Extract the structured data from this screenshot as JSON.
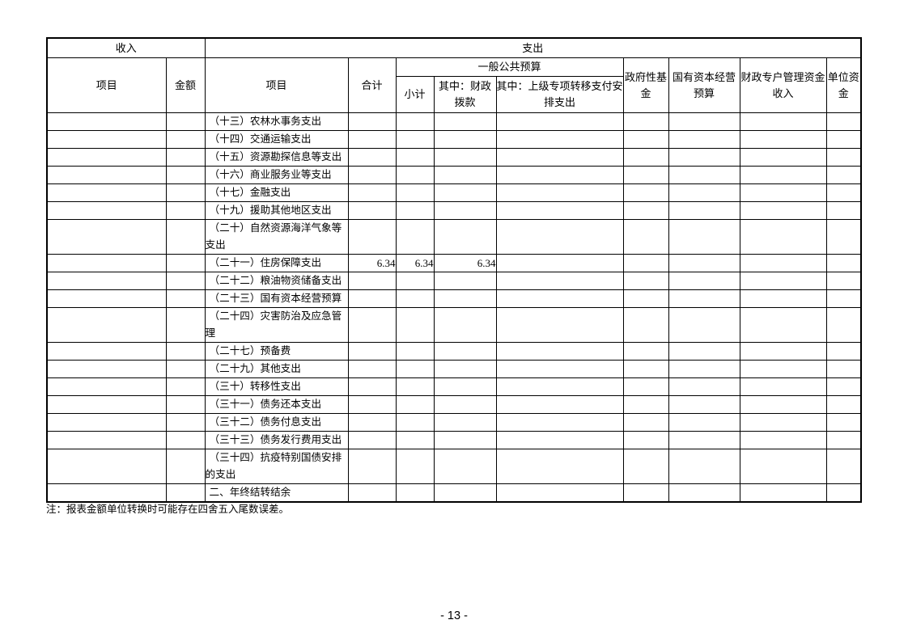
{
  "page": {
    "note": "注：报表金额单位转换时可能存在四舍五入尾数误差。",
    "number_label": "- 13 -"
  },
  "table": {
    "header": {
      "income": "收入",
      "expense": "支出",
      "income_item": "项目",
      "income_amount": "金额",
      "expense_item": "项目",
      "total": "合计",
      "general_public_budget": "一般公共预算",
      "subtotal": "小计",
      "fiscal_allocation": "其中：财政拨款",
      "transfer_payment": "其中：上级专项转移支付安排支出",
      "gov_fund": "政府性基金",
      "state_capital": "国有资本经营预算",
      "special_account": "财政专户管理资金收入",
      "unit_fund": "单位资金"
    },
    "rows": [
      {
        "income_item": "",
        "income_amount": "",
        "item": "（十三）农林水事务支出",
        "values": [
          "",
          "",
          "",
          "",
          "",
          "",
          "",
          ""
        ]
      },
      {
        "income_item": "",
        "income_amount": "",
        "item": "（十四）交通运输支出",
        "values": [
          "",
          "",
          "",
          "",
          "",
          "",
          "",
          ""
        ]
      },
      {
        "income_item": "",
        "income_amount": "",
        "item": "（十五）资源勘探信息等支出",
        "values": [
          "",
          "",
          "",
          "",
          "",
          "",
          "",
          ""
        ]
      },
      {
        "income_item": "",
        "income_amount": "",
        "item": "（十六）商业服务业等支出",
        "values": [
          "",
          "",
          "",
          "",
          "",
          "",
          "",
          ""
        ]
      },
      {
        "income_item": "",
        "income_amount": "",
        "item": "（十七）金融支出",
        "values": [
          "",
          "",
          "",
          "",
          "",
          "",
          "",
          ""
        ]
      },
      {
        "income_item": "",
        "income_amount": "",
        "item": "（十九）援助其他地区支出",
        "values": [
          "",
          "",
          "",
          "",
          "",
          "",
          "",
          ""
        ]
      },
      {
        "income_item": "",
        "income_amount": "",
        "item": "（二十）自然资源海洋气象等支出",
        "values": [
          "",
          "",
          "",
          "",
          "",
          "",
          "",
          ""
        ]
      },
      {
        "income_item": "",
        "income_amount": "",
        "item": "（二十一）住房保障支出",
        "values": [
          "6.34",
          "6.34",
          "6.34",
          "",
          "",
          "",
          "",
          ""
        ]
      },
      {
        "income_item": "",
        "income_amount": "",
        "item": "（二十二）粮油物资储备支出",
        "values": [
          "",
          "",
          "",
          "",
          "",
          "",
          "",
          ""
        ]
      },
      {
        "income_item": "",
        "income_amount": "",
        "item": "（二十三）国有资本经营预算",
        "values": [
          "",
          "",
          "",
          "",
          "",
          "",
          "",
          ""
        ]
      },
      {
        "income_item": "",
        "income_amount": "",
        "item": "（二十四）灾害防治及应急管理",
        "values": [
          "",
          "",
          "",
          "",
          "",
          "",
          "",
          ""
        ]
      },
      {
        "income_item": "",
        "income_amount": "",
        "item": "（二十七）预备费",
        "values": [
          "",
          "",
          "",
          "",
          "",
          "",
          "",
          ""
        ]
      },
      {
        "income_item": "",
        "income_amount": "",
        "item": "（二十九）其他支出",
        "values": [
          "",
          "",
          "",
          "",
          "",
          "",
          "",
          ""
        ]
      },
      {
        "income_item": "",
        "income_amount": "",
        "item": "（三十）转移性支出",
        "values": [
          "",
          "",
          "",
          "",
          "",
          "",
          "",
          ""
        ]
      },
      {
        "income_item": "",
        "income_amount": "",
        "item": "（三十一）债务还本支出",
        "values": [
          "",
          "",
          "",
          "",
          "",
          "",
          "",
          ""
        ]
      },
      {
        "income_item": "",
        "income_amount": "",
        "item": "（三十二）债务付息支出",
        "values": [
          "",
          "",
          "",
          "",
          "",
          "",
          "",
          ""
        ]
      },
      {
        "income_item": "",
        "income_amount": "",
        "item": "（三十三）债务发行费用支出",
        "values": [
          "",
          "",
          "",
          "",
          "",
          "",
          "",
          ""
        ]
      },
      {
        "income_item": "",
        "income_amount": "",
        "item": "（三十四）抗疫特别国债安排的支出",
        "values": [
          "",
          "",
          "",
          "",
          "",
          "",
          "",
          ""
        ]
      },
      {
        "income_item": "",
        "income_amount": "",
        "item": "二、年终结转结余",
        "values": [
          "",
          "",
          "",
          "",
          "",
          "",
          "",
          ""
        ]
      }
    ]
  }
}
